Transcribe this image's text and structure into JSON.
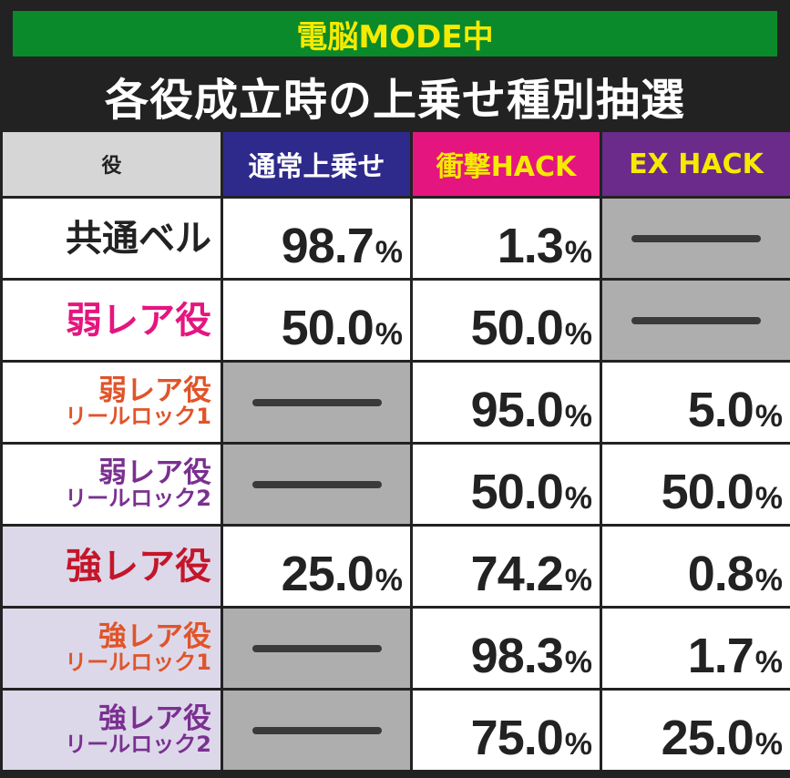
{
  "banner": "電脳MODE中",
  "title": "各役成立時の上乗せ種別抽選",
  "headers": {
    "role": "役",
    "normal": "通常上乗せ",
    "shock": "衝撃HACK",
    "ex": "EX HACK"
  },
  "colors": {
    "banner_bg": "#0a8a2a",
    "banner_text": "#f5ea00",
    "normal_header": "#2e2a8c",
    "shock_header": "#e5157f",
    "ex_header": "#6a2b8a",
    "common_role": "#222222",
    "weak_rare": "#e5157f",
    "reel_lock_1": "#e0542a",
    "reel_lock_2": "#7a3090",
    "strong_rare": "#c4162a"
  },
  "rows": [
    {
      "role": "共通ベル",
      "sub": "",
      "normal": "98.7",
      "shock": "1.3",
      "ex": ""
    },
    {
      "role": "弱レア役",
      "sub": "",
      "normal": "50.0",
      "shock": "50.0",
      "ex": ""
    },
    {
      "role": "弱レア役",
      "sub": "リールロック1",
      "normal": "",
      "shock": "95.0",
      "ex": "5.0"
    },
    {
      "role": "弱レア役",
      "sub": "リールロック2",
      "normal": "",
      "shock": "50.0",
      "ex": "50.0"
    },
    {
      "role": "強レア役",
      "sub": "",
      "normal": "25.0",
      "shock": "74.2",
      "ex": "0.8"
    },
    {
      "role": "強レア役",
      "sub": "リールロック1",
      "normal": "",
      "shock": "98.3",
      "ex": "1.7"
    },
    {
      "role": "強レア役",
      "sub": "リールロック2",
      "normal": "",
      "shock": "75.0",
      "ex": "25.0"
    }
  ],
  "percent_sign": "%"
}
